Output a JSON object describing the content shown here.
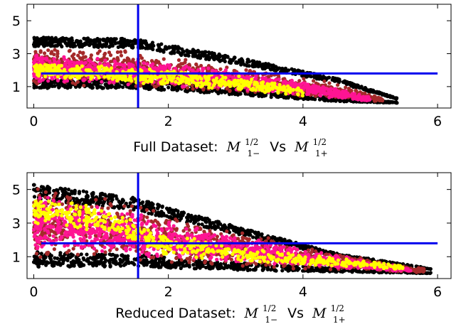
{
  "chart_data": [
    {
      "type": "scatter",
      "title": "",
      "caption": {
        "prefix": "Full Dataset:",
        "vs": "Vs",
        "lhs_var": "M",
        "lhs_sub": "1−",
        "lhs_sup": "1/2",
        "rhs_var": "M",
        "rhs_sub": "1+",
        "rhs_sup": "1/2"
      },
      "xlim": [
        -0.1,
        6.2
      ],
      "ylim": [
        -0.3,
        6.0
      ],
      "xticks": [
        0,
        2,
        4,
        6
      ],
      "yticks": [
        1,
        3,
        5
      ],
      "xtick_labels": [
        "0",
        "2",
        "4",
        "6"
      ],
      "ytick_labels": [
        "1",
        "3",
        "5"
      ],
      "vline_x": 1.55,
      "hline_y": 1.8,
      "line_color": "#0000ee",
      "series": [
        {
          "color": "#000000",
          "band": [
            {
              "x": 0.0,
              "lo": 0.9,
              "hi": 4.0
            },
            {
              "x": 1.5,
              "lo": 0.9,
              "hi": 3.9
            },
            {
              "x": 3.0,
              "lo": 0.5,
              "hi": 2.8
            },
            {
              "x": 4.5,
              "lo": 0.1,
              "hi": 1.5
            },
            {
              "x": 5.4,
              "lo": 0.0,
              "hi": 0.3
            }
          ]
        },
        {
          "color": "#a52a2a",
          "band": [
            {
              "x": 0.0,
              "lo": 1.05,
              "hi": 3.4
            },
            {
              "x": 1.5,
              "lo": 1.0,
              "hi": 3.2
            },
            {
              "x": 3.0,
              "lo": 0.6,
              "hi": 2.3
            },
            {
              "x": 4.5,
              "lo": 0.2,
              "hi": 1.2
            },
            {
              "x": 5.2,
              "lo": 0.05,
              "hi": 0.3
            }
          ]
        },
        {
          "color": "#ff1493",
          "band": [
            {
              "x": 0.0,
              "lo": 1.3,
              "hi": 3.0
            },
            {
              "x": 1.5,
              "lo": 1.1,
              "hi": 2.6
            },
            {
              "x": 3.0,
              "lo": 0.8,
              "hi": 2.0
            },
            {
              "x": 4.5,
              "lo": 0.3,
              "hi": 0.9
            },
            {
              "x": 5.0,
              "lo": 0.1,
              "hi": 0.4
            }
          ]
        },
        {
          "color": "#ffff00",
          "band": [
            {
              "x": 0.0,
              "lo": 1.6,
              "hi": 2.4
            },
            {
              "x": 1.0,
              "lo": 1.3,
              "hi": 2.3
            },
            {
              "x": 2.0,
              "lo": 1.0,
              "hi": 2.1
            },
            {
              "x": 3.0,
              "lo": 0.8,
              "hi": 1.7
            },
            {
              "x": 4.0,
              "lo": 0.4,
              "hi": 1.0
            }
          ]
        }
      ]
    },
    {
      "type": "scatter",
      "title": "",
      "caption": {
        "prefix": "Reduced Dataset:",
        "vs": "Vs",
        "lhs_var": "M",
        "lhs_sub": "1−",
        "lhs_sup": "1/2",
        "rhs_var": "M",
        "rhs_sub": "1+",
        "rhs_sup": "1/2"
      },
      "xlim": [
        -0.1,
        6.2
      ],
      "ylim": [
        -0.3,
        6.0
      ],
      "xticks": [
        0,
        2,
        4,
        6
      ],
      "yticks": [
        1,
        3,
        5
      ],
      "xtick_labels": [
        "0",
        "2",
        "4",
        "6"
      ],
      "ytick_labels": [
        "1",
        "3",
        "5"
      ],
      "vline_x": 1.55,
      "hline_y": 1.8,
      "line_color": "#0000ee",
      "series": [
        {
          "color": "#000000",
          "band": [
            {
              "x": 0.0,
              "lo": 0.4,
              "hi": 5.3
            },
            {
              "x": 1.5,
              "lo": 0.4,
              "hi": 4.5
            },
            {
              "x": 3.0,
              "lo": 0.2,
              "hi": 2.8
            },
            {
              "x": 4.5,
              "lo": 0.1,
              "hi": 1.2
            },
            {
              "x": 5.9,
              "lo": 0.0,
              "hi": 0.3
            }
          ]
        },
        {
          "color": "#a52a2a",
          "band": [
            {
              "x": 0.0,
              "lo": 0.8,
              "hi": 5.3
            },
            {
              "x": 1.5,
              "lo": 0.7,
              "hi": 4.2
            },
            {
              "x": 3.0,
              "lo": 0.4,
              "hi": 2.6
            },
            {
              "x": 4.5,
              "lo": 0.15,
              "hi": 1.2
            },
            {
              "x": 5.8,
              "lo": 0.05,
              "hi": 0.3
            }
          ]
        },
        {
          "color": "#ff1493",
          "band": [
            {
              "x": 0.0,
              "lo": 1.3,
              "hi": 4.9
            },
            {
              "x": 1.5,
              "lo": 1.0,
              "hi": 3.6
            },
            {
              "x": 3.0,
              "lo": 0.6,
              "hi": 2.3
            },
            {
              "x": 4.5,
              "lo": 0.3,
              "hi": 1.1
            },
            {
              "x": 5.6,
              "lo": 0.1,
              "hi": 0.3
            }
          ]
        },
        {
          "color": "#ffff00",
          "band": [
            {
              "x": 0.0,
              "lo": 2.9,
              "hi": 4.5
            },
            {
              "x": 0.8,
              "lo": 2.6,
              "hi": 4.2
            },
            {
              "x": 2.0,
              "lo": 1.0,
              "hi": 2.4
            },
            {
              "x": 3.5,
              "lo": 0.6,
              "hi": 1.4
            },
            {
              "x": 5.5,
              "lo": 0.2,
              "hi": 0.5
            }
          ]
        }
      ]
    }
  ]
}
